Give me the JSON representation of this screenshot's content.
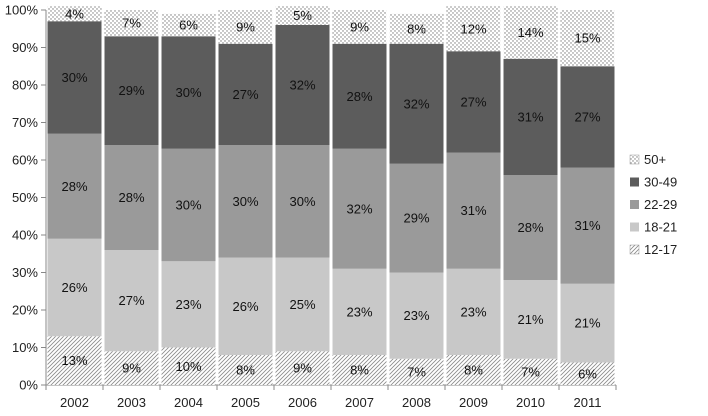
{
  "chart_data": {
    "type": "bar",
    "stacked": true,
    "categories": [
      "2002",
      "2003",
      "2004",
      "2005",
      "2006",
      "2007",
      "2008",
      "2009",
      "2010",
      "2011"
    ],
    "series": [
      {
        "name": "12-17",
        "values": [
          13,
          9,
          10,
          8,
          9,
          8,
          7,
          8,
          7,
          6
        ],
        "pattern": "diagonal-hatch",
        "color": "#ffffff"
      },
      {
        "name": "18-21",
        "values": [
          26,
          27,
          23,
          26,
          25,
          23,
          23,
          23,
          21,
          21
        ],
        "color": "#c8c8c8"
      },
      {
        "name": "22-29",
        "values": [
          28,
          28,
          30,
          30,
          30,
          32,
          29,
          31,
          28,
          31
        ],
        "color": "#9a9a9a"
      },
      {
        "name": "30-49",
        "values": [
          30,
          29,
          30,
          27,
          32,
          28,
          32,
          27,
          31,
          27
        ],
        "color": "#5c5c5c"
      },
      {
        "name": "50+",
        "values": [
          4,
          7,
          6,
          9,
          5,
          9,
          8,
          12,
          14,
          15
        ],
        "pattern": "dots",
        "color": "#ffffff"
      }
    ],
    "data_labels": [
      [
        "13%",
        "9%",
        "10%",
        "8%",
        "9%",
        "8%",
        "7%",
        "8%",
        "7%",
        "6%"
      ],
      [
        "26%",
        "27%",
        "23%",
        "26%",
        "25%",
        "23%",
        "23%",
        "23%",
        "21%",
        "21%"
      ],
      [
        "28%",
        "28%",
        "30%",
        "30%",
        "30%",
        "32%",
        "29%",
        "31%",
        "28%",
        "31%"
      ],
      [
        "30%",
        "29%",
        "30%",
        "27%",
        "32%",
        "28%",
        "32%",
        "27%",
        "31%",
        "27%"
      ],
      [
        "4%",
        "7%",
        "6%",
        "9%",
        "5%",
        "9%",
        "8%",
        "12%",
        "14%",
        "15%"
      ]
    ],
    "yticks": [
      "0%",
      "10%",
      "20%",
      "30%",
      "40%",
      "50%",
      "60%",
      "70%",
      "80%",
      "90%",
      "100%"
    ],
    "ylim": [
      0,
      100
    ],
    "legend_position": "right",
    "legend_order": [
      "50+",
      "30-49",
      "22-29",
      "18-21",
      "12-17"
    ],
    "grid": false
  }
}
